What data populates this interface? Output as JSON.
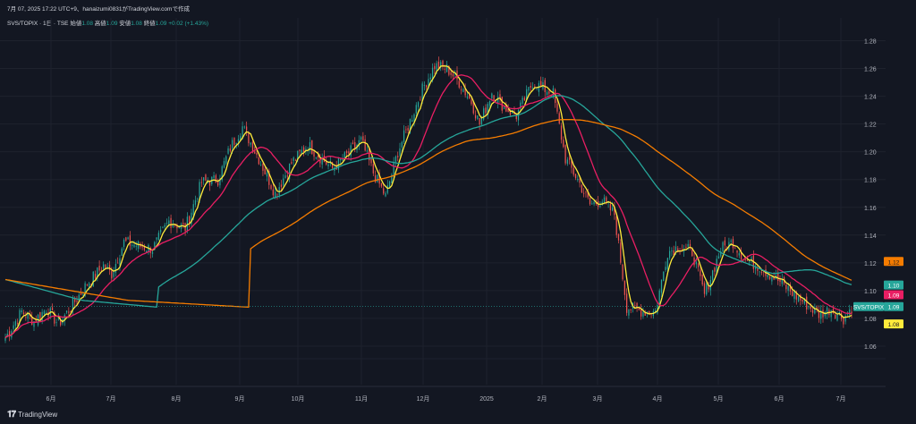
{
  "header": {
    "timestamp_line": "7月 07, 2025 17:22 UTC+9、hanaizumi0831がTradingView.comで作成"
  },
  "legend": {
    "symbol": "SVS/TOPIX · 1日 · TSE",
    "open_label": "始値",
    "open": "1.08",
    "high_label": "高値",
    "high": "1.09",
    "low_label": "安値",
    "low": "1.08",
    "close_label": "終値",
    "close": "1.09",
    "change": "+0.02 (+1.43%)"
  },
  "footer": {
    "brand": "TradingView"
  },
  "colors": {
    "background": "#131722",
    "grid": "#1e222d",
    "up": "#26a69a",
    "down": "#ef5350",
    "ma_yellow": "#ffeb3b",
    "ma_pink": "#e91e63",
    "ma_teal": "#26a69a",
    "ma_orange": "#f57c00"
  },
  "chart_data": {
    "type": "candlestick",
    "symbol": "SVS/TOPIX",
    "x_ticks": [
      "6月",
      "7月",
      "8月",
      "9月",
      "10月",
      "11月",
      "12月",
      "2025",
      "2月",
      "3月",
      "4月",
      "5月",
      "6月",
      "7月"
    ],
    "y_ticks": [
      "1.06",
      "1.08",
      "1.10",
      "1.12",
      "1.14",
      "1.16",
      "1.18",
      "1.20",
      "1.22",
      "1.24",
      "1.26",
      "1.28"
    ],
    "ylim": [
      1.04,
      1.29
    ],
    "grid": true,
    "price_labels": [
      {
        "text": "1.12",
        "value": 1.121,
        "color": "#f57c00",
        "fg": "#131722"
      },
      {
        "text": "1.10",
        "value": 1.104,
        "color": "#26a69a",
        "fg": "#ffffff"
      },
      {
        "text": "1.09",
        "value": 1.097,
        "color": "#e91e63",
        "fg": "#ffffff"
      },
      {
        "text": "SVS/TOPIX",
        "value": 1.0885,
        "color": "#26a69a",
        "fg": "#ffffff"
      },
      {
        "text": "1.09",
        "value": 1.0885,
        "color": "#26a69a",
        "fg": "#ffffff"
      },
      {
        "text": "1.08",
        "value": 1.076,
        "color": "#ffeb3b",
        "fg": "#131722"
      }
    ],
    "close_anchors": [
      [
        0,
        1.066
      ],
      [
        8,
        1.085
      ],
      [
        14,
        1.078
      ],
      [
        20,
        1.087
      ],
      [
        26,
        1.076
      ],
      [
        32,
        1.088
      ],
      [
        40,
        1.105
      ],
      [
        48,
        1.118
      ],
      [
        52,
        1.112
      ],
      [
        58,
        1.135
      ],
      [
        66,
        1.132
      ],
      [
        72,
        1.13
      ],
      [
        80,
        1.15
      ],
      [
        88,
        1.145
      ],
      [
        96,
        1.178
      ],
      [
        104,
        1.18
      ],
      [
        110,
        1.203
      ],
      [
        116,
        1.218
      ],
      [
        124,
        1.195
      ],
      [
        132,
        1.17
      ],
      [
        140,
        1.192
      ],
      [
        148,
        1.205
      ],
      [
        154,
        1.196
      ],
      [
        160,
        1.188
      ],
      [
        166,
        1.196
      ],
      [
        174,
        1.208
      ],
      [
        180,
        1.185
      ],
      [
        186,
        1.168
      ],
      [
        192,
        1.2
      ],
      [
        198,
        1.222
      ],
      [
        204,
        1.245
      ],
      [
        210,
        1.262
      ],
      [
        216,
        1.26
      ],
      [
        222,
        1.25
      ],
      [
        228,
        1.236
      ],
      [
        232,
        1.22
      ],
      [
        238,
        1.243
      ],
      [
        244,
        1.232
      ],
      [
        250,
        1.226
      ],
      [
        258,
        1.25
      ],
      [
        264,
        1.245
      ],
      [
        268,
        1.242
      ],
      [
        274,
        1.195
      ],
      [
        280,
        1.18
      ],
      [
        286,
        1.162
      ],
      [
        292,
        1.165
      ],
      [
        298,
        1.155
      ],
      [
        304,
        1.088
      ],
      [
        312,
        1.085
      ],
      [
        318,
        1.085
      ],
      [
        324,
        1.128
      ],
      [
        330,
        1.132
      ],
      [
        336,
        1.128
      ],
      [
        342,
        1.097
      ],
      [
        350,
        1.13
      ],
      [
        356,
        1.135
      ],
      [
        362,
        1.122
      ],
      [
        368,
        1.118
      ],
      [
        374,
        1.112
      ],
      [
        380,
        1.105
      ],
      [
        386,
        1.097
      ],
      [
        392,
        1.09
      ],
      [
        398,
        1.083
      ],
      [
        404,
        1.087
      ],
      [
        410,
        1.08
      ],
      [
        414,
        1.088
      ]
    ],
    "moving_averages": [
      {
        "period": 5,
        "color": "#ffeb3b"
      },
      {
        "period": 20,
        "color": "#e91e63"
      },
      {
        "period": 75,
        "color": "#26a69a"
      },
      {
        "period": 120,
        "color": "#f57c00"
      }
    ]
  }
}
